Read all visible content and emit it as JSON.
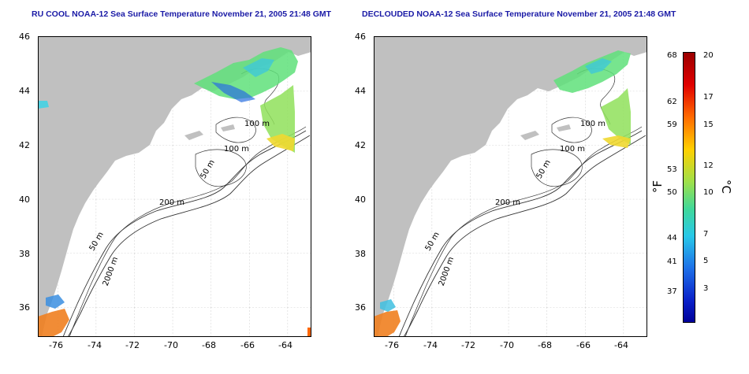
{
  "left_panel": {
    "title": "RU COOL NOAA-12 Sea Surface Temperature November 21, 2005 21:48 GMT",
    "contour_labels": [
      "100 m",
      "100 m",
      "50 m",
      "200 m",
      "50 m",
      "2000 m"
    ]
  },
  "right_panel": {
    "title": "DECLOUDED NOAA-12 Sea Surface Temperature November 21, 2005 21:48 GMT",
    "contour_labels": [
      "100 m",
      "100 m",
      "50 m",
      "200 m",
      "50 m",
      "2000 m"
    ]
  },
  "axes": {
    "lat_ticks": [
      "46",
      "44",
      "42",
      "40",
      "38",
      "36"
    ],
    "lon_ticks": [
      "-76",
      "-74",
      "-72",
      "-70",
      "-68",
      "-66",
      "-64"
    ]
  },
  "colorbar": {
    "unit_f": "°F",
    "unit_c": "°C",
    "f_ticks": [
      "68",
      "62",
      "59",
      "53",
      "50",
      "44",
      "41",
      "37"
    ],
    "c_ticks": [
      "20",
      "17",
      "15",
      "12",
      "10",
      "7",
      "5",
      "3"
    ]
  },
  "colors": {
    "land": "#c0c0c0",
    "title": "#1a1aa6",
    "cbar_high": "#990000",
    "cbar_low": "#000099"
  }
}
